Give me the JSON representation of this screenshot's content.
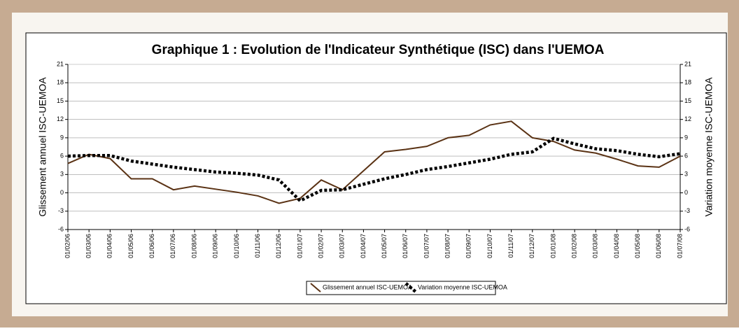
{
  "chart_data": {
    "type": "line",
    "title": "Graphique 1 : Evolution de l'Indicateur Synthétique (ISC) dans l'UEMOA",
    "ylabel": "Glissement annuel ISC-UEMOA",
    "y2label": "Variation moyenne ISC-UEMOA",
    "categories": [
      "01/02/06",
      "01/03/06",
      "01/04/06",
      "01/05/06",
      "01/06/06",
      "01/07/06",
      "01/08/06",
      "01/09/06",
      "01/10/06",
      "01/11/06",
      "01/12/06",
      "01/01/07",
      "01/02/07",
      "01/03/07",
      "01/04/07",
      "01/05/07",
      "01/06/07",
      "01/07/07",
      "01/08/07",
      "01/09/07",
      "01/10/07",
      "01/11/07",
      "01/12/07",
      "01/01/08",
      "01/02/08",
      "01/03/08",
      "01/04/08",
      "01/05/08",
      "01/06/08",
      "01/07/08"
    ],
    "series": [
      {
        "name": "Glissement annuel ISC-UEMOA",
        "color": "#5a3214",
        "values": [
          4.8,
          6.3,
          5.6,
          2.3,
          2.3,
          0.5,
          1.1,
          0.6,
          0.1,
          -0.5,
          -1.7,
          -0.9,
          2.1,
          0.5,
          3.6,
          6.7,
          7.1,
          7.6,
          9.0,
          9.4,
          11.1,
          11.7,
          9.0,
          8.4,
          7.0,
          6.5,
          5.5,
          4.4,
          4.2,
          6.0
        ]
      },
      {
        "name": "Variation moyenne ISC-UEMOA",
        "color": "#000000",
        "axis": "y2",
        "values": [
          6.0,
          6.1,
          6.1,
          5.2,
          4.7,
          4.2,
          3.8,
          3.4,
          3.2,
          2.9,
          2.1,
          -1.3,
          0.4,
          0.5,
          1.4,
          2.3,
          3.0,
          3.8,
          4.3,
          4.9,
          5.5,
          6.3,
          6.7,
          8.9,
          8.0,
          7.2,
          6.9,
          6.3,
          5.9,
          6.4
        ]
      }
    ],
    "ylim": [
      -6,
      21
    ],
    "yticks": [
      -6,
      -3,
      0,
      3,
      6,
      9,
      12,
      15,
      18,
      21
    ],
    "y2lim": [
      -6,
      21
    ],
    "y2ticks": [
      -6,
      -3,
      0,
      3,
      6,
      9,
      12,
      15,
      18,
      21
    ],
    "grid": true,
    "legend": "bottom"
  }
}
